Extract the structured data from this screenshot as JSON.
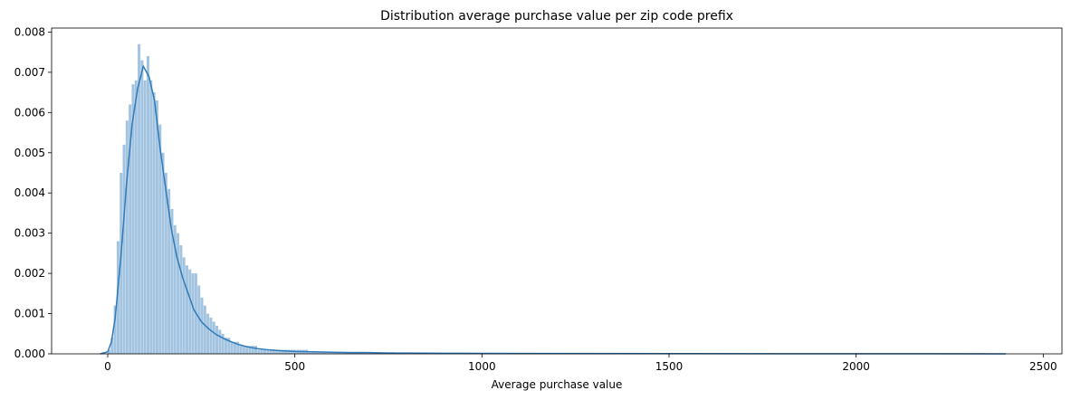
{
  "chart_data": {
    "type": "bar",
    "title": "Distribution average purchase value per zip code prefix",
    "xlabel": "Average purchase value",
    "ylabel": "",
    "xlim": [
      -150,
      2550
    ],
    "ylim": [
      0,
      0.0081
    ],
    "grid": false,
    "xticks": [
      0,
      500,
      1000,
      1500,
      2000,
      2500
    ],
    "xtick_labels": [
      "0",
      "500",
      "1000",
      "1500",
      "2000",
      "2500"
    ],
    "yticks": [
      0,
      0.001,
      0.002,
      0.003,
      0.004,
      0.005,
      0.006,
      0.007,
      0.008
    ],
    "ytick_labels": [
      "0.000",
      "0.001",
      "0.002",
      "0.003",
      "0.004",
      "0.005",
      "0.006",
      "0.007",
      "0.008"
    ],
    "colors": {
      "hist": "#a3c4e0",
      "kde": "#2f7ab8"
    },
    "histogram": {
      "bin_width": 8,
      "bin_start": 0,
      "densities": [
        0.0001,
        0.0004,
        0.0012,
        0.0028,
        0.0045,
        0.0052,
        0.0058,
        0.0062,
        0.0067,
        0.0068,
        0.0077,
        0.0073,
        0.0068,
        0.0074,
        0.0068,
        0.0065,
        0.0063,
        0.0057,
        0.005,
        0.0045,
        0.0041,
        0.0036,
        0.0032,
        0.003,
        0.0027,
        0.0024,
        0.0022,
        0.0021,
        0.002,
        0.002,
        0.0017,
        0.0014,
        0.0012,
        0.001,
        0.0009,
        0.0008,
        0.0007,
        0.0006,
        0.0005,
        0.0004,
        0.0004,
        0.0003,
        0.0003,
        0.0003,
        0.0002,
        0.0002,
        0.0002,
        0.0002,
        0.0002,
        0.0002,
        0.0001,
        0.0001,
        0.0001,
        0.0001,
        0.0001,
        0.0001,
        0.0001,
        0.0001,
        0.0001,
        0.0001,
        0.0001,
        0.0001,
        0.0001,
        0.0001,
        0.0001,
        0.0001,
        0.0001,
        5e-05,
        5e-05,
        5e-05,
        5e-05,
        5e-05,
        5e-05,
        5e-05,
        5e-05,
        5e-05,
        5e-05,
        5e-05,
        5e-05,
        5e-05,
        5e-05,
        5e-05,
        5e-05,
        5e-05,
        5e-05,
        5e-05,
        4e-05,
        4e-05,
        4e-05,
        4e-05,
        4e-05,
        4e-05,
        4e-05,
        4e-05,
        4e-05,
        4e-05,
        3e-05,
        3e-05,
        3e-05,
        3e-05,
        3e-05,
        3e-05,
        3e-05,
        3e-05,
        3e-05,
        3e-05,
        2e-05,
        2e-05,
        2e-05,
        2e-05,
        2e-05,
        2e-05,
        2e-05,
        2e-05,
        2e-05,
        2e-05,
        1e-05,
        1e-05,
        1e-05,
        1e-05,
        1e-05,
        1e-05
      ]
    },
    "kde": {
      "x": [
        -20,
        0,
        10,
        20,
        35,
        50,
        65,
        80,
        95,
        110,
        125,
        140,
        155,
        170,
        185,
        200,
        215,
        230,
        250,
        270,
        290,
        310,
        330,
        350,
        375,
        400,
        430,
        460,
        500,
        550,
        600,
        650,
        700,
        750,
        800,
        900,
        1000,
        1200,
        1500,
        1800,
        2000,
        2200,
        2400
      ],
      "y": [
        0,
        5e-05,
        0.0003,
        0.0009,
        0.0024,
        0.0042,
        0.0057,
        0.0066,
        0.00715,
        0.0069,
        0.0063,
        0.0051,
        0.0041,
        0.0031,
        0.0024,
        0.0019,
        0.0015,
        0.0011,
        0.0008,
        0.00062,
        0.00048,
        0.00038,
        0.0003,
        0.00023,
        0.00017,
        0.00013,
        0.0001,
        8e-05,
        6e-05,
        5e-05,
        4e-05,
        3e-05,
        3e-05,
        2e-05,
        2e-05,
        1.5e-05,
        1e-05,
        8e-06,
        5e-06,
        4e-06,
        3e-06,
        2e-06,
        1e-06
      ]
    }
  }
}
